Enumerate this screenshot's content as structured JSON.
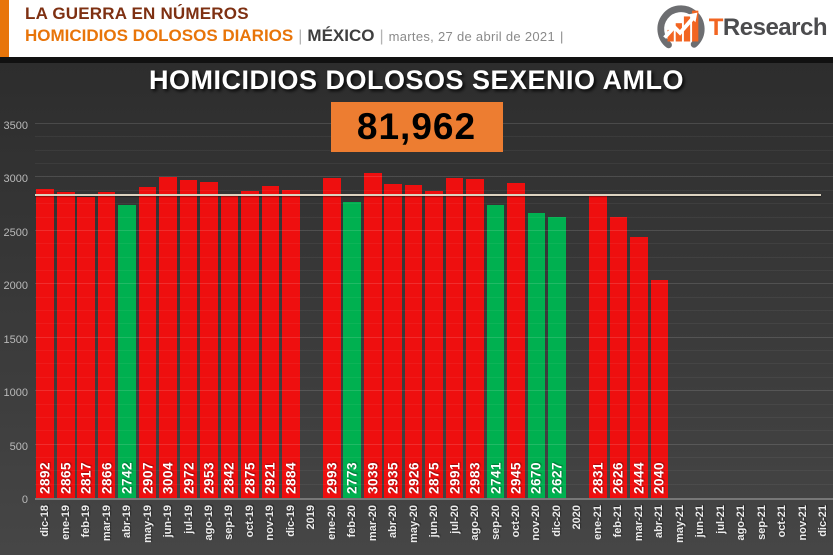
{
  "header": {
    "kicker": "LA GUERRA EN NÚMEROS",
    "subtitle": "HOMICIDIOS DOLOSOS DIARIOS",
    "separator": "|",
    "country": "MÉXICO",
    "date": "martes, 27 de abril de 2021",
    "trailing_separator": "|",
    "logo": {
      "t": "T",
      "rest": "Research"
    },
    "colors": {
      "accent_orange": "#e8750a",
      "kicker_brown": "#7e3012",
      "country_dark": "#3f3f3f",
      "date_gray": "#8a8a8a",
      "logo_orange": "#f26522",
      "logo_gray": "#4c4c4e"
    }
  },
  "chart": {
    "title": "HOMICIDIOS DOLOSOS SEXENIO AMLO",
    "total": "81,962",
    "total_box_color": "#ed7d31"
  },
  "chart_data": {
    "type": "bar",
    "title": "HOMICIDIOS DOLOSOS SEXENIO AMLO",
    "total_label": "81,962",
    "xlabel": "",
    "ylabel": "",
    "ylim": [
      0,
      3500
    ],
    "ytick_step": 500,
    "minor_grid_step": 125,
    "grid": true,
    "legend": false,
    "average_line_value": 2826,
    "average_line_color": "#ddd3c0",
    "bar_color_red": "#ee0f0f",
    "bar_color_green": "#00b050",
    "categories": [
      "dic-18",
      "ene-19",
      "feb-19",
      "mar-19",
      "abr-19",
      "may-19",
      "jun-19",
      "jul-19",
      "ago-19",
      "sep-19",
      "oct-19",
      "nov-19",
      "dic-19",
      "2019",
      "ene-20",
      "feb-20",
      "mar-20",
      "abr-20",
      "may-20",
      "jun-20",
      "jul-20",
      "ago-20",
      "sep-20",
      "oct-20",
      "nov-20",
      "dic-20",
      "2020",
      "ene-21",
      "feb-21",
      "mar-21",
      "abr-21",
      "may-21",
      "jun-21",
      "jul-21",
      "ago-21",
      "sep-21",
      "oct-21",
      "nov-21",
      "dic-21"
    ],
    "values": [
      2892,
      2865,
      2817,
      2866,
      2742,
      2907,
      3004,
      2972,
      2953,
      2842,
      2875,
      2921,
      2884,
      null,
      2993,
      2773,
      3039,
      2935,
      2926,
      2875,
      2991,
      2983,
      2741,
      2945,
      2670,
      2627,
      null,
      2831,
      2626,
      2444,
      2040,
      null,
      null,
      null,
      null,
      null,
      null,
      null,
      null
    ],
    "colors": [
      "red",
      "red",
      "red",
      "red",
      "green",
      "red",
      "red",
      "red",
      "red",
      "red",
      "red",
      "red",
      "red",
      null,
      "red",
      "green",
      "red",
      "red",
      "red",
      "red",
      "red",
      "red",
      "green",
      "red",
      "green",
      "green",
      null,
      "red",
      "red",
      "red",
      "red",
      null,
      null,
      null,
      null,
      null,
      null,
      null,
      null
    ]
  }
}
